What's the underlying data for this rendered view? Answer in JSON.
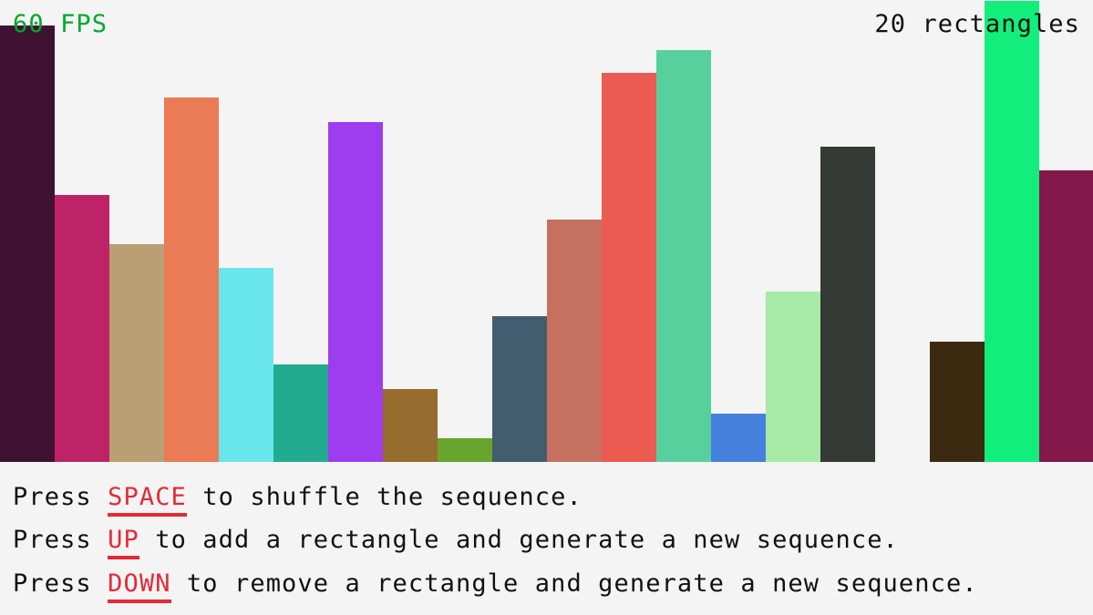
{
  "hud": {
    "fps": "60 FPS",
    "count": "20 rectangles",
    "fps_color": "#00a82b"
  },
  "instructions": [
    {
      "prefix": "Press ",
      "key": "SPACE",
      "suffix": " to shuffle the sequence."
    },
    {
      "prefix": "Press ",
      "key": "UP",
      "suffix": " to add a rectangle and generate a new sequence."
    },
    {
      "prefix": "Press ",
      "key": "DOWN",
      "suffix": " to remove a rectangle and generate a new sequence."
    }
  ],
  "key_color": "#e62937",
  "sequence": {
    "max_value": 507,
    "values": [
      479,
      293,
      239,
      400,
      213,
      107,
      373,
      80,
      26,
      160,
      266,
      427,
      452,
      53,
      187,
      346,
      0,
      132,
      506,
      320
    ],
    "colors": [
      "#3f1233",
      "#bf2367",
      "#b8a073",
      "#ea7b54",
      "#69e6ec",
      "#23ab91",
      "#9e3cf0",
      "#966c2f",
      "#67a52d",
      "#425d70",
      "#c67160",
      "#eb5b51",
      "#57d09e",
      "#4680dd",
      "#a7eaa6",
      "#353a36",
      "#f4f4f4",
      "#3b2a10",
      "#12ee7b",
      "#83184b"
    ]
  }
}
